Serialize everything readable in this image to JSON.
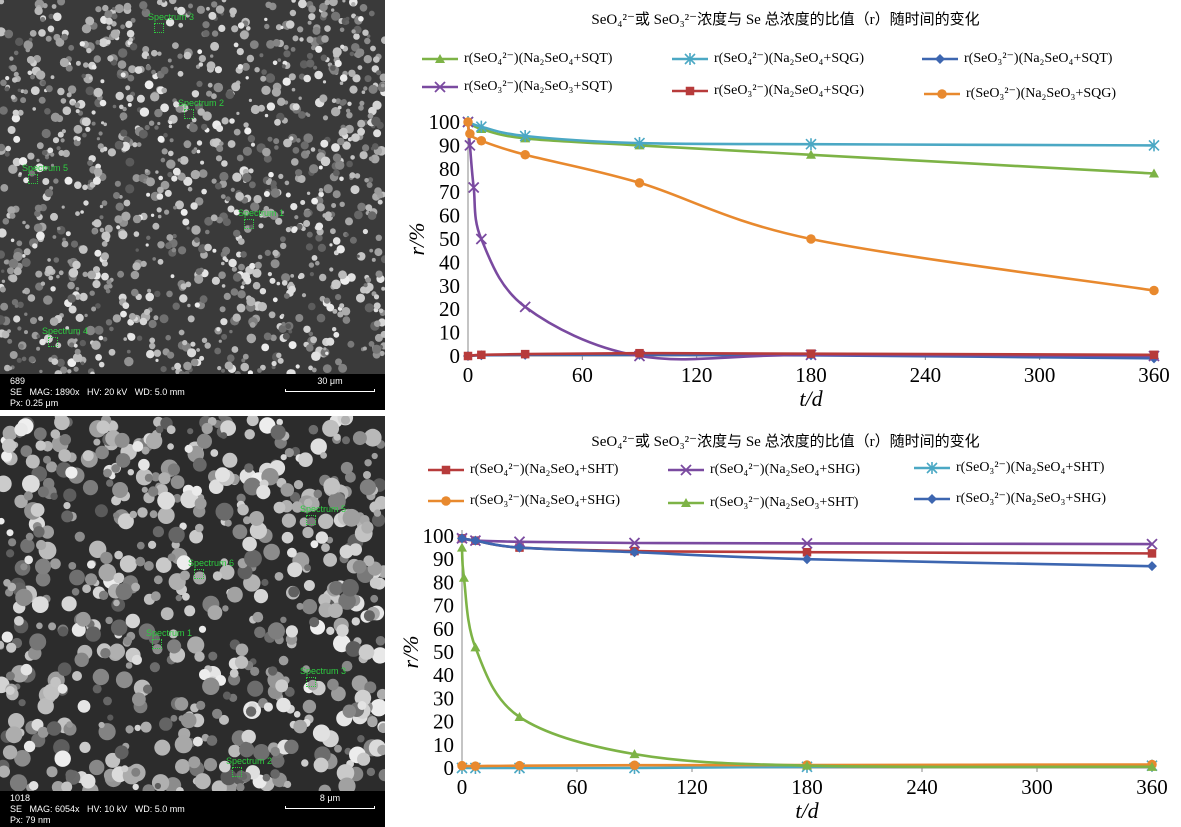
{
  "sem_images": [
    {
      "image_id": "689",
      "params": "SE   MAG: 1890x   HV: 20 kV   WD: 5.0 mm",
      "pixel_size": "Px: 0.25 μm",
      "scale_label": "30 μm",
      "spectra": [
        "Spectrum 3",
        "Spectrum 2",
        "Spectrum 5",
        "Spectrum 1",
        "Spectrum 4"
      ]
    },
    {
      "image_id": "1018",
      "params": "SE   MAG: 6054x   HV: 10 kV   WD: 5.0 mm",
      "pixel_size": "Px: 79 nm",
      "scale_label": "8 μm",
      "spectra": [
        "Spectrum 5",
        "Spectrum 6",
        "Spectrum 1",
        "Spectrum 3",
        "Spectrum 2"
      ]
    }
  ],
  "chart_data": [
    {
      "type": "line",
      "title": "SeO₄²⁻或 SeO₃²⁻浓度与 Se 总浓度的比值（r）随时间的变化",
      "xlabel": "t/d",
      "ylabel": "r/%",
      "xlim": [
        0,
        360
      ],
      "ylim": [
        0,
        100
      ],
      "xticks": [
        "0",
        "60",
        "120",
        "180",
        "240",
        "300",
        "360"
      ],
      "yticks": [
        "0",
        "10",
        "20",
        "30",
        "40",
        "50",
        "60",
        "70",
        "80",
        "90",
        "100"
      ],
      "grid": false,
      "legend": "top",
      "series": [
        {
          "name": "r(SeO₄²⁻)(Na₂SeO₄+SQT)",
          "color": "#7db346",
          "marker": "triangle",
          "x": [
            0,
            7,
            30,
            90,
            180,
            360
          ],
          "y": [
            100,
            97,
            93,
            90,
            86,
            78
          ]
        },
        {
          "name": "r(SeO₄²⁻)(Na₂SeO₄+SQG)",
          "color": "#4ba8c4",
          "marker": "asterisk",
          "x": [
            0,
            7,
            30,
            90,
            180,
            360
          ],
          "y": [
            100,
            98,
            94,
            91,
            90.5,
            90
          ]
        },
        {
          "name": "r(SeO₃²⁻)(Na₂SeO₄+SQT)",
          "color": "#3d66b0",
          "marker": "diamond",
          "x": [
            0,
            7,
            30,
            90,
            180,
            360
          ],
          "y": [
            0,
            0.3,
            0.5,
            0.5,
            0.3,
            -1
          ]
        },
        {
          "name": "r(SeO₃²⁻)(Na₂SeO₃+SQT)",
          "color": "#7a4aa0",
          "marker": "x",
          "x": [
            0,
            1,
            3,
            7,
            30,
            90,
            180,
            360
          ],
          "y": [
            100,
            90,
            72,
            50,
            21,
            0,
            0.5,
            0
          ]
        },
        {
          "name": "r(SeO₃²⁻)(Na₂SeO₄+SQG)",
          "color": "#b73b3b",
          "marker": "square",
          "x": [
            0,
            7,
            30,
            90,
            180,
            360
          ],
          "y": [
            0,
            0.5,
            0.8,
            1.2,
            1,
            0.5
          ]
        },
        {
          "name": "r(SeO₃²⁻)(Na₂SeO₃+SQG)",
          "color": "#e8892e",
          "marker": "circle",
          "x": [
            0,
            1,
            7,
            30,
            90,
            180,
            360
          ],
          "y": [
            100,
            95,
            92,
            86,
            74,
            50,
            28
          ]
        }
      ]
    },
    {
      "type": "line",
      "title": "SeO₄²⁻或 SeO₃²⁻浓度与 Se 总浓度的比值（r）随时间的变化",
      "xlabel": "t/d",
      "ylabel": "r/%",
      "xlim": [
        0,
        360
      ],
      "ylim": [
        0,
        100
      ],
      "xticks": [
        "0",
        "60",
        "120",
        "180",
        "240",
        "300",
        "360"
      ],
      "yticks": [
        "0",
        "10",
        "20",
        "30",
        "40",
        "50",
        "60",
        "70",
        "80",
        "90",
        "100"
      ],
      "grid": false,
      "legend": "top",
      "series": [
        {
          "name": "r(SeO₄²⁻)(Na₂SeO₄+SHT)",
          "color": "#b73b3b",
          "marker": "square",
          "x": [
            0,
            7,
            30,
            90,
            180,
            360
          ],
          "y": [
            99,
            98,
            95,
            93.5,
            93,
            92.5
          ]
        },
        {
          "name": "r(SeO₄²⁻)(Na₂SeO₄+SHG)",
          "color": "#7a4aa0",
          "marker": "x",
          "x": [
            0,
            7,
            30,
            90,
            180,
            360
          ],
          "y": [
            99,
            98,
            97.5,
            97,
            96.8,
            96.5
          ]
        },
        {
          "name": "r(SeO₃²⁻)(Na₂SeO₄+SHT)",
          "color": "#4ba8c4",
          "marker": "asterisk",
          "x": [
            0,
            7,
            30,
            90,
            180,
            360
          ],
          "y": [
            0,
            0,
            0,
            0,
            0.5,
            1
          ]
        },
        {
          "name": "r(SeO₃²⁻)(Na₂SeO₄+SHG)",
          "color": "#e8892e",
          "marker": "circle",
          "x": [
            0,
            7,
            30,
            90,
            180,
            360
          ],
          "y": [
            1,
            0.8,
            1,
            1.2,
            1.3,
            1.5
          ]
        },
        {
          "name": "r(SeO₃²⁻)(Na₂SeO₃+SHT)",
          "color": "#7db346",
          "marker": "triangle",
          "x": [
            0,
            1,
            7,
            30,
            90,
            180,
            360
          ],
          "y": [
            95,
            82,
            52,
            22,
            6,
            1,
            0.5
          ]
        },
        {
          "name": "r(SeO₃²⁻)(Na₂SeO₃+SHG)",
          "color": "#3d66b0",
          "marker": "diamond",
          "x": [
            0,
            7,
            30,
            90,
            180,
            360
          ],
          "y": [
            99,
            98,
            95,
            93,
            90,
            87
          ]
        }
      ]
    }
  ]
}
